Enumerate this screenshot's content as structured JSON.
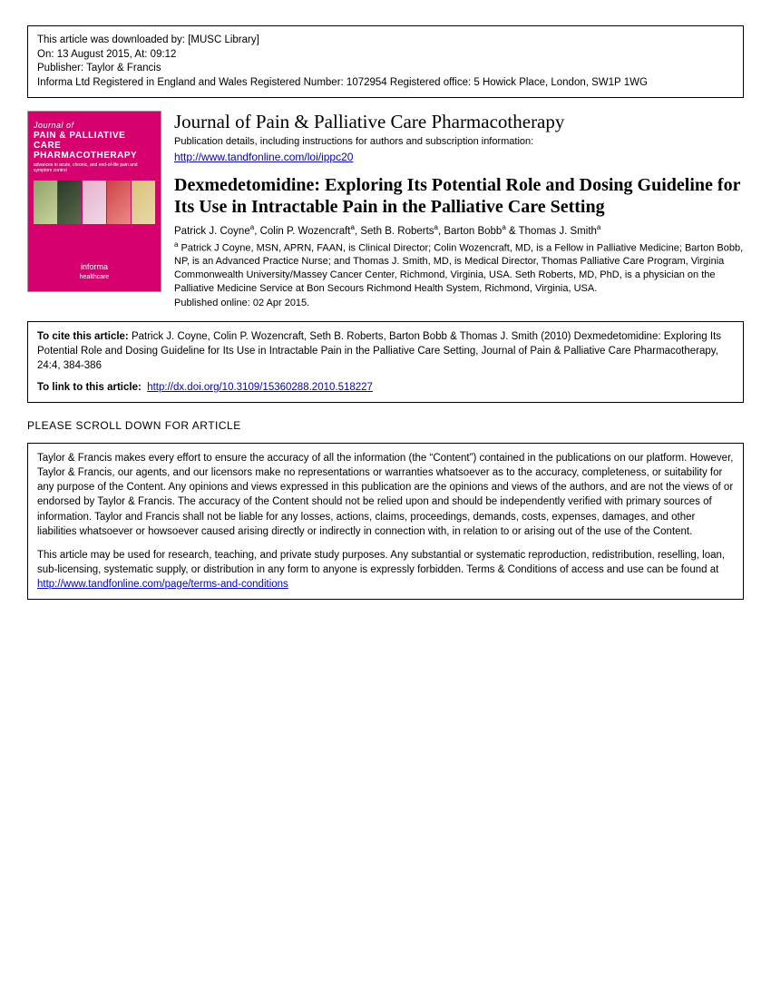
{
  "download": {
    "line1_prefix": "This article was downloaded by: ",
    "line1_value": "[MUSC Library]",
    "line2_prefix": "On: ",
    "line2_value": "13 August 2015, At: 09:12",
    "line3": "Publisher: Taylor & Francis",
    "line4": "Informa Ltd Registered in England and Wales Registered Number: 1072954 Registered office: 5 Howick Place, London, SW1P 1WG"
  },
  "cover": {
    "small": "Journal of",
    "main": "PAIN & PALLIATIVE CARE PHARMACOTHERAPY",
    "sub": "advances in acute, chronic, and end-of-life pain and symptom control",
    "informa": "informa",
    "informa_sub": "healthcare"
  },
  "journal": {
    "name": "Journal of Pain & Palliative Care Pharmacotherapy",
    "pub_details": "Publication details, including instructions for authors and subscription information:",
    "pub_url": "http://www.tandfonline.com/loi/ippc20"
  },
  "article": {
    "title": "Dexmedetomidine: Exploring Its Potential Role and Dosing Guideline for Its Use in Intractable Pain in the Palliative Care Setting",
    "authors_html": "Patrick J. Coyne<sup>a</sup>, Colin P. Wozencraft<sup>a</sup>, Seth B. Roberts<sup>a</sup>, Barton Bobb<sup>a</sup> & Thomas J. Smith<sup>a</sup>",
    "affil_marker": "a",
    "affil_text": " Patrick J Coyne, MSN, APRN, FAAN, is Clinical Director; Colin Wozencraft, MD, is a Fellow in Palliative Medicine; Barton Bobb, NP, is an Advanced Practice Nurse; and Thomas J. Smith, MD, is Medical Director, Thomas Palliative Care Program, Virginia Commonwealth University/Massey Cancer Center, Richmond, Virginia, USA. Seth Roberts, MD, PhD, is a physician on the Palliative Medicine Service at Bon Secours Richmond Health System, Richmond, Virginia, USA.",
    "pub_online": "Published online: 02 Apr 2015."
  },
  "cite": {
    "label": "To cite this article:",
    "text": " Patrick J. Coyne, Colin P. Wozencraft, Seth B. Roberts, Barton Bobb & Thomas J. Smith (2010) Dexmedetomidine: Exploring Its Potential Role and Dosing Guideline for Its Use in Intractable Pain in the Palliative Care Setting, Journal of Pain & Palliative Care Pharmacotherapy, 24:4, 384-386",
    "link_label": "To link to this article:",
    "doi_url": "http://dx.doi.org/10.3109/15360288.2010.518227"
  },
  "scroll_notice": "PLEASE SCROLL DOWN FOR ARTICLE",
  "disclaimer": {
    "p1": "Taylor & Francis makes every effort to ensure the accuracy of all the information (the “Content”) contained in the publications on our platform. However, Taylor & Francis, our agents, and our licensors make no representations or warranties whatsoever as to the accuracy, completeness, or suitability for any purpose of the Content. Any opinions and views expressed in this publication are the opinions and views of the authors, and are not the views of or endorsed by Taylor & Francis. The accuracy of the Content should not be relied upon and should be independently verified with primary sources of information. Taylor and Francis shall not be liable for any losses, actions, claims, proceedings, demands, costs, expenses, damages, and other liabilities whatsoever or howsoever caused arising directly or indirectly in connection with, in relation to or arising out of the use of the Content.",
    "p2_pre": "This article may be used for research, teaching, and private study purposes. Any substantial or systematic reproduction, redistribution, reselling, loan, sub-licensing, systematic supply, or distribution in any form to anyone is expressly forbidden. Terms & Conditions of access and use can be found at ",
    "p2_url": "http://www.tandfonline.com/page/terms-and-conditions"
  }
}
